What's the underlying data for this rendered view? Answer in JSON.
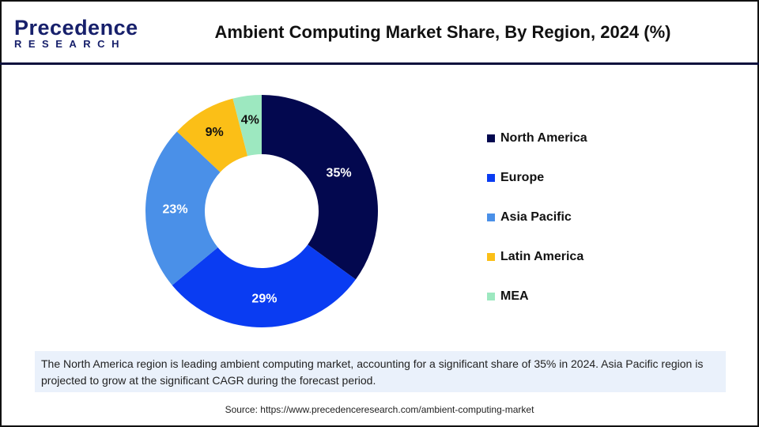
{
  "header": {
    "logo_text": "Precedence RESEARCH",
    "logo_main": "Precedence",
    "logo_sub": "RESEARCH",
    "title": "Ambient Computing Market Share, By Region, 2024 (%)"
  },
  "chart_data": {
    "type": "pie",
    "donut": true,
    "title": "Ambient Computing Market Share, By Region, 2024 (%)",
    "categories": [
      "North America",
      "Europe",
      "Asia Pacific",
      "Latin America",
      "MEA"
    ],
    "values": [
      35,
      29,
      23,
      9,
      4
    ],
    "labels": [
      "35%",
      "29%",
      "23%",
      "9%",
      "4%"
    ],
    "colors": [
      "#03084f",
      "#0a3cf2",
      "#4a90e8",
      "#fbbf17",
      "#9de8c0"
    ],
    "label_colors": [
      "#ffffff",
      "#ffffff",
      "#ffffff",
      "#111111",
      "#111111"
    ],
    "start": "top",
    "direction": "clockwise",
    "legend_position": "right"
  },
  "note": "The North America region is leading ambient computing market, accounting for a significant share of 35% in 2024. Asia Pacific region is projected to grow at the significant CAGR during the forecast period.",
  "source": "Source: https://www.precedenceresearch.com/ambient-computing-market"
}
